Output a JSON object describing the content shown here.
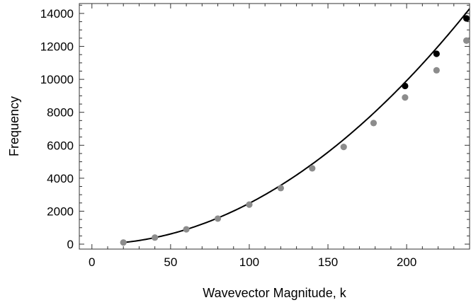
{
  "chart_data": {
    "type": "scatter",
    "title": "",
    "xlabel": "Wavevector Magnitude, k",
    "ylabel": "Frequency",
    "xlim": [
      -8,
      240
    ],
    "ylim": [
      -300,
      14600
    ],
    "xticks": [
      0,
      50,
      100,
      150,
      200
    ],
    "yticks": [
      0,
      2000,
      4000,
      6000,
      8000,
      10000,
      12000,
      14000
    ],
    "grid": false,
    "frame": true,
    "series": [
      {
        "color": "#8c8c8c",
        "x": [
          20,
          40,
          60,
          80,
          100,
          120,
          140,
          160,
          179,
          199,
          219,
          238
        ],
        "y": [
          100,
          400,
          900,
          1550,
          2400,
          3400,
          4600,
          5900,
          7350,
          8900,
          10550,
          12350
        ]
      },
      {
        "color": "#000000",
        "x": [
          199,
          219,
          238
        ],
        "y": [
          9600,
          11550,
          13700
        ]
      }
    ],
    "curve": {
      "color": "#000000",
      "x_range": [
        20,
        240
      ],
      "coefficient": 0.248,
      "exponent": 2
    }
  }
}
